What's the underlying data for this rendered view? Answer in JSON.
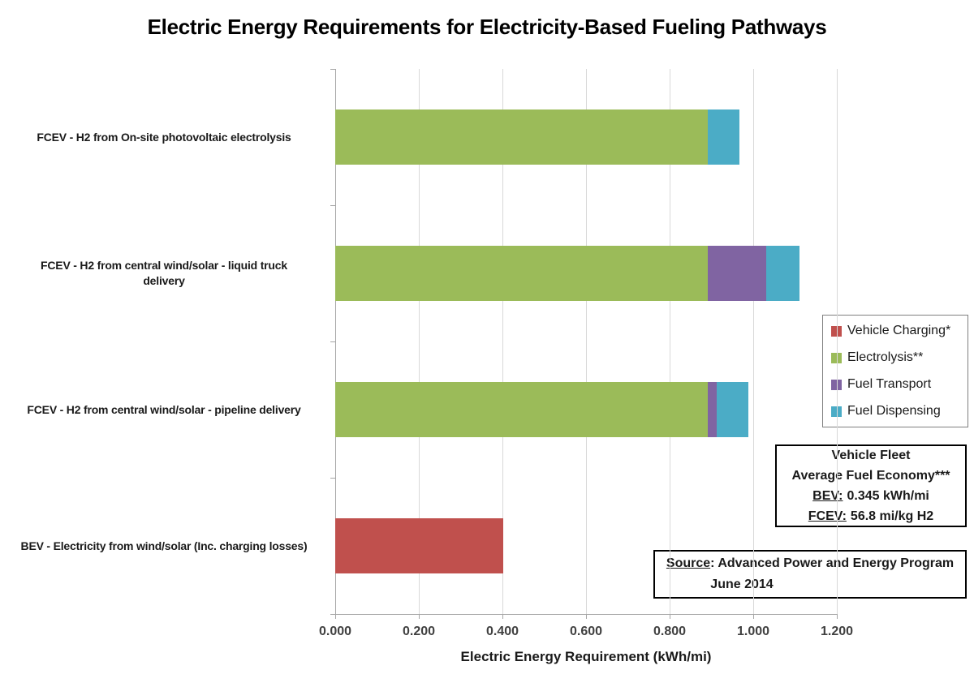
{
  "title": "Electric Energy Requirements for Electricity-Based Fueling Pathways",
  "chart_data": {
    "type": "bar",
    "orientation": "horizontal",
    "title": "Electric Energy Requirements for Electricity-Based Fueling Pathways",
    "categories": [
      "FCEV - H2 from On-site photovoltaic electrolysis",
      "FCEV - H2 from central wind/solar - liquid truck\ndelivery",
      "FCEV - H2 from central wind/solar - pipeline delivery",
      "BEV - Electricity from wind/solar (Inc. charging losses)"
    ],
    "series": [
      {
        "name": "Vehicle Charging*",
        "color": "#C0504D",
        "values": [
          0,
          0,
          0,
          0.402
        ]
      },
      {
        "name": "Electrolysis**",
        "color": "#9BBB59",
        "values": [
          0.891,
          0.891,
          0.891,
          0
        ]
      },
      {
        "name": "Fuel Transport",
        "color": "#8064A2",
        "values": [
          0,
          0.14,
          0.021,
          0
        ]
      },
      {
        "name": "Fuel Dispensing",
        "color": "#4BACC6",
        "values": [
          0.076,
          0.08,
          0.076,
          0
        ]
      }
    ],
    "bar_totals": [
      0.967,
      1.111,
      0.988,
      0.402
    ],
    "xlabel": "Electric Energy Requirement (kWh/mi)",
    "xlim": [
      0,
      1.2
    ],
    "xticks": [
      0,
      0.2,
      0.4,
      0.6,
      0.8,
      1.0,
      1.2
    ],
    "xtick_labels": [
      "0.000",
      "0.200",
      "0.400",
      "0.600",
      "0.800",
      "1.000",
      "1.200"
    ],
    "grid": true,
    "legend_position": "right"
  },
  "annotations": {
    "vehicle_box": {
      "line1": "Vehicle Fleet",
      "line2": "Average Fuel Economy***",
      "bev_label": "BEV:",
      "bev_value": "0.345 kWh/mi",
      "fcev_label": "FCEV:",
      "fcev_value": "56.8 mi/kg H2"
    },
    "source_box": {
      "label": "Source",
      "text": ": Advanced Power and Energy Program",
      "line2": "June 2014"
    }
  },
  "colors": {
    "gridline": "#D9D9D9",
    "axis": "#A6A6A6",
    "tick_text": "#404040",
    "text": "#1A1A1A"
  }
}
